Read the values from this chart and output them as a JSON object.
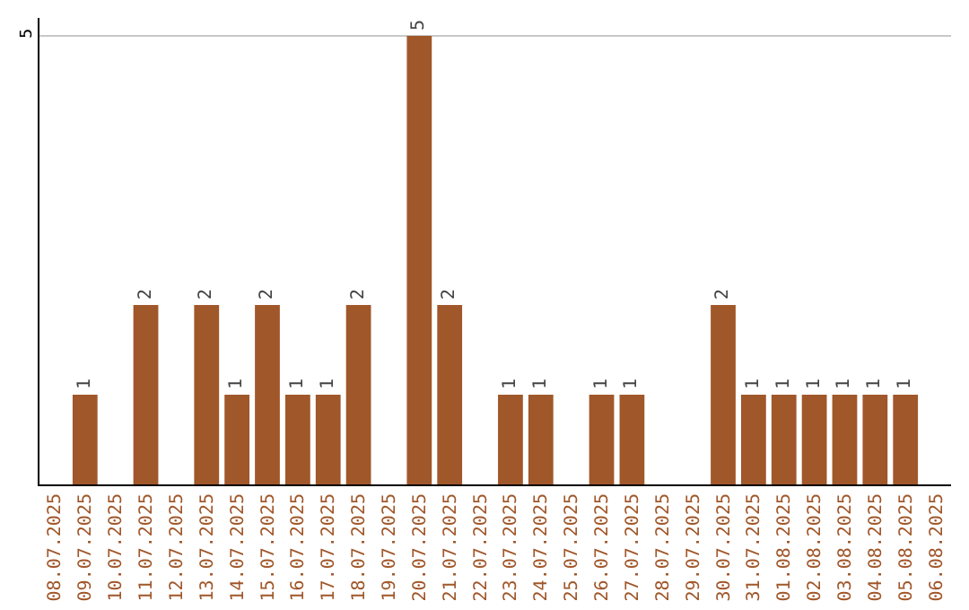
{
  "chart_data": {
    "type": "bar",
    "categories": [
      "08.07.2025",
      "09.07.2025",
      "10.07.2025",
      "11.07.2025",
      "12.07.2025",
      "13.07.2025",
      "14.07.2025",
      "15.07.2025",
      "16.07.2025",
      "17.07.2025",
      "18.07.2025",
      "19.07.2025",
      "20.07.2025",
      "21.07.2025",
      "22.07.2025",
      "23.07.2025",
      "24.07.2025",
      "25.07.2025",
      "26.07.2025",
      "27.07.2025",
      "28.07.2025",
      "29.07.2025",
      "30.07.2025",
      "31.07.2025",
      "01.08.2025",
      "02.08.2025",
      "03.08.2025",
      "04.08.2025",
      "05.08.2025",
      "06.08.2025"
    ],
    "values": [
      0,
      1,
      0,
      2,
      0,
      2,
      1,
      2,
      1,
      1,
      2,
      0,
      5,
      2,
      0,
      1,
      1,
      0,
      1,
      1,
      0,
      0,
      2,
      1,
      1,
      1,
      1,
      1,
      1,
      0
    ],
    "value_labels": [
      null,
      "1",
      null,
      "2",
      null,
      "2",
      "1",
      "2",
      "1",
      "1",
      "2",
      null,
      "5",
      "2",
      null,
      "1",
      "1",
      null,
      "1",
      "1",
      null,
      null,
      "2",
      "1",
      "1",
      "1",
      "1",
      "1",
      "1",
      null
    ],
    "color": "#a0572a",
    "ylim": [
      0,
      5.2
    ],
    "yticks": [
      5
    ],
    "grid": "y"
  }
}
